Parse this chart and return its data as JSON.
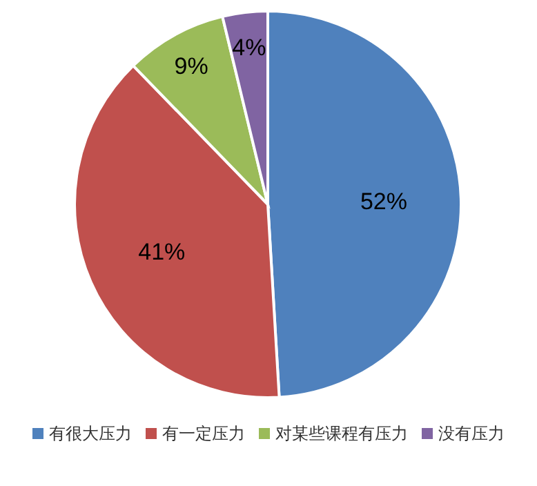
{
  "chart_data": {
    "type": "pie",
    "categories": [
      "有很大压力",
      "有一定压力",
      "对某些课程有压力",
      "没有压力"
    ],
    "values": [
      52,
      41,
      9,
      4
    ],
    "value_labels": [
      "52%",
      "41%",
      "9%",
      "4%"
    ],
    "colors": [
      "#4f81bd",
      "#c0504d",
      "#9bbb59",
      "#8064a2"
    ],
    "legend": "bottom"
  }
}
